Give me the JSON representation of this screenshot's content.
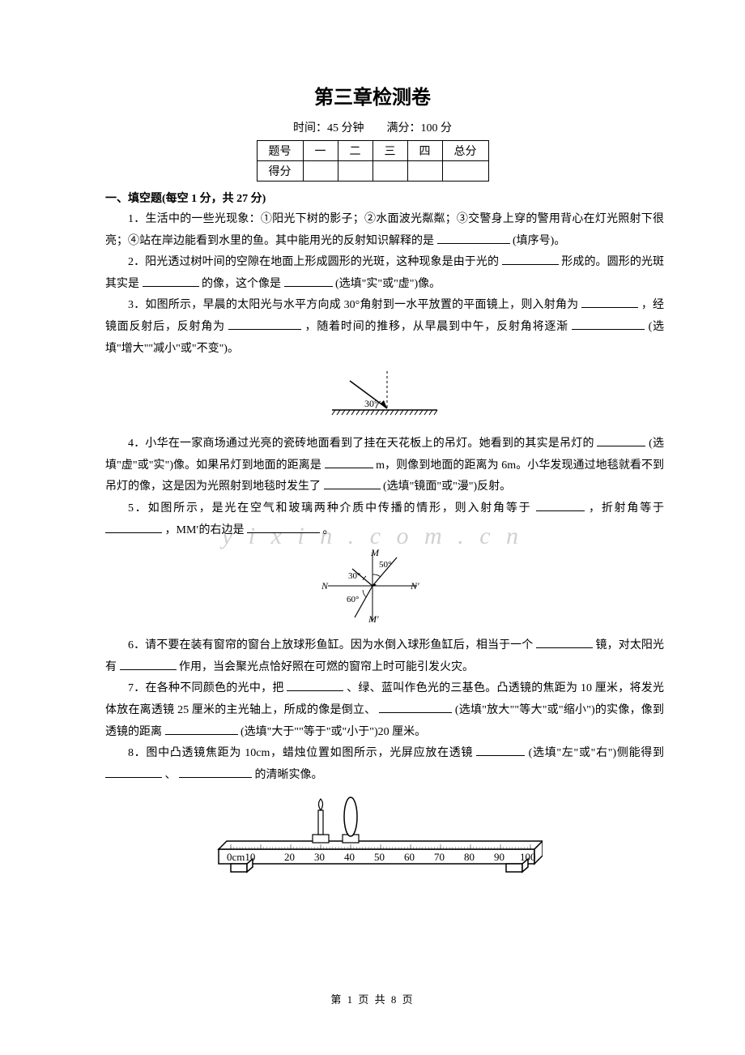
{
  "title": "第三章检测卷",
  "time_score_line": "时间：45 分钟　　满分：100 分",
  "score_table": {
    "headers": [
      "题号",
      "一",
      "二",
      "三",
      "四",
      "总分"
    ],
    "row2_label": "得分"
  },
  "section1": {
    "header": "一、填空题(每空 1 分，共 27 分)",
    "q1": {
      "pre": "1．生活中的一些光现象：①阳光下树的影子；②水面波光粼粼；③交警身上穿的警用背心在灯光照射下很亮；④站在岸边能看到水里的鱼。其中能用光的反射知识解释的是",
      "post": "(填序号)。"
    },
    "q2": {
      "pre": "2．阳光透过树叶间的空隙在地面上形成圆形的光斑，这种现象是由于光的",
      "mid": "形成的。圆形的光斑其实是",
      "mid2": "的像，这个像是",
      "post": "(选填\"实\"或\"虚\")像。"
    },
    "q3": {
      "pre": "3．如图所示，早晨的太阳光与水平方向成 30°角射到一水平放置的平面镜上，则入射角为",
      "mid": "，经镜面反射后，反射角为",
      "mid2": "，随着时间的推移，从早晨到中午，反射角将逐渐",
      "post": "(选填\"增大\"\"减小\"或\"不变\")。"
    },
    "q4": {
      "pre": "4．小华在一家商场通过光亮的瓷砖地面看到了挂在天花板上的吊灯。她看到的其实是吊灯的",
      "mid": "(选填\"虚\"或\"实\")像。如果吊灯到地面的距离是",
      "mid2": "m，则像到地面的距离为 6m。小华发现通过地毯就看不到吊灯的像，这是因为光照射到地毯时发生了",
      "post": "(选填\"镜面\"或\"漫\")反射。"
    },
    "q5": {
      "pre": "5．如图所示，是光在空气和玻璃两种介质中传播的情形，则入射角等于",
      "mid": "，折射角等于",
      "mid2": "，MM′的右边是",
      "post": "。"
    },
    "q6": {
      "pre": "6．请不要在装有窗帘的窗台上放球形鱼缸。因为水倒入球形鱼缸后，相当于一个",
      "mid": "镜，对太阳光有",
      "post": "作用，当会聚光点恰好照在可燃的窗帘上时可能引发火灾。"
    },
    "q7": {
      "pre": "7．在各种不同颜色的光中，把",
      "mid": "、绿、蓝叫作色光的三基色。凸透镜的焦距为 10 厘米，将发光体放在离透镜 25 厘米的主光轴上，所成的像是倒立、",
      "mid2": "(选填\"放大\"\"等大\"或\"缩小\")的实像，像到透镜的距离",
      "post": "(选填\"大于\"\"等于\"或\"小于\")20 厘米。"
    },
    "q8": {
      "pre": "8．图中凸透镜焦距为 10cm，蜡烛位置如图所示，光屏应放在透镜",
      "mid": "(选填\"左\"或\"右\")侧能得到",
      "mid2": "、",
      "post": "的清晰实像。"
    }
  },
  "fig3": {
    "angle_label": "30°",
    "colors": {
      "line": "#000000",
      "dash": "#000000"
    }
  },
  "fig5": {
    "labels": {
      "M": "M",
      "M_prime": "M′",
      "N": "N",
      "N_prime": "N′",
      "a50": "50°",
      "a30": "30°",
      "a60": "60°"
    }
  },
  "fig8": {
    "ruler_labels": [
      "0cm10",
      "20",
      "30",
      "40",
      "50",
      "60",
      "70",
      "80",
      "90",
      "100"
    ]
  },
  "watermark": "y i x i n . c o m . c n",
  "footer": "第 1 页 共 8 页"
}
